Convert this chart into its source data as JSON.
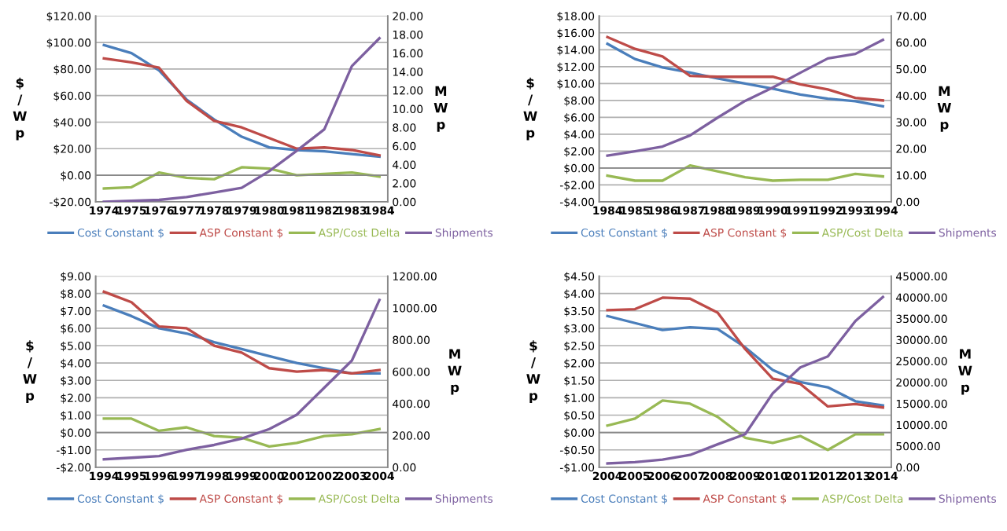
{
  "chart_data": [
    {
      "type": "line",
      "categories": [
        "1974",
        "1975",
        "1976",
        "1977",
        "1978",
        "1979",
        "1980",
        "1981",
        "1982",
        "1983",
        "1984"
      ],
      "ylabel": "$/Wp",
      "y2label": "MWp",
      "grid": "y",
      "legend": "bottom",
      "marker": "none",
      "line_style": "solid",
      "ylim": [
        -20,
        120
      ],
      "yticks": [
        {
          "value": -20,
          "label": "-$20.00"
        },
        {
          "value": 0,
          "label": "$0.00"
        },
        {
          "value": 20,
          "label": "$20.00"
        },
        {
          "value": 40,
          "label": "$40.00"
        },
        {
          "value": 60,
          "label": "$60.00"
        },
        {
          "value": 80,
          "label": "$80.00"
        },
        {
          "value": 100,
          "label": "$100.00"
        },
        {
          "value": 120,
          "label": "$120.00"
        }
      ],
      "y2lim": [
        0,
        20
      ],
      "y2ticks": [
        {
          "value": 0,
          "label": "0.00"
        },
        {
          "value": 2,
          "label": "2.00"
        },
        {
          "value": 4,
          "label": "4.00"
        },
        {
          "value": 6,
          "label": "6.00"
        },
        {
          "value": 8,
          "label": "8.00"
        },
        {
          "value": 10,
          "label": "10.00"
        },
        {
          "value": 12,
          "label": "12.00"
        },
        {
          "value": 14,
          "label": "14.00"
        },
        {
          "value": 16,
          "label": "16.00"
        },
        {
          "value": 18,
          "label": "18.00"
        },
        {
          "value": 20,
          "label": "20.00"
        }
      ],
      "series": [
        {
          "name": "Cost Constant $",
          "color": "#4a7ebb",
          "values": [
            98,
            92,
            79,
            57,
            42,
            29,
            21,
            19,
            18,
            16,
            14
          ]
        },
        {
          "name": "ASP Constant $",
          "color": "#be4b48",
          "values": [
            88,
            85,
            81,
            56,
            41,
            36,
            28,
            20,
            21,
            19,
            15
          ]
        },
        {
          "name": "ASP/Cost Delta",
          "color": "#98b954",
          "values": [
            -10,
            -9,
            2,
            -2,
            -3,
            6,
            5,
            0,
            1,
            2,
            -1
          ]
        },
        {
          "name": "Shipments",
          "color": "#7d60a0",
          "axis": "y2",
          "values": [
            0,
            0.1,
            0.2,
            0.5,
            1,
            1.5,
            3.3,
            5.5,
            7.8,
            14.6,
            17.6
          ]
        }
      ]
    },
    {
      "type": "line",
      "categories": [
        "1984",
        "1985",
        "1986",
        "1987",
        "1988",
        "1989",
        "1990",
        "1991",
        "1992",
        "1993",
        "1994"
      ],
      "ylabel": "$/Wp",
      "y2label": "MWp",
      "grid": "y",
      "legend": "bottom",
      "marker": "none",
      "line_style": "solid",
      "ylim": [
        -4,
        18
      ],
      "yticks": [
        {
          "value": -4,
          "label": "-$4.00"
        },
        {
          "value": -2,
          "label": "-$2.00"
        },
        {
          "value": 0,
          "label": "$0.00"
        },
        {
          "value": 2,
          "label": "$2.00"
        },
        {
          "value": 4,
          "label": "$4.00"
        },
        {
          "value": 6,
          "label": "$6.00"
        },
        {
          "value": 8,
          "label": "$8.00"
        },
        {
          "value": 10,
          "label": "$10.00"
        },
        {
          "value": 12,
          "label": "$12.00"
        },
        {
          "value": 14,
          "label": "$14.00"
        },
        {
          "value": 16,
          "label": "$16.00"
        },
        {
          "value": 18,
          "label": "$18.00"
        }
      ],
      "y2lim": [
        0,
        70
      ],
      "y2ticks": [
        {
          "value": 0,
          "label": "0.00"
        },
        {
          "value": 10,
          "label": "10.00"
        },
        {
          "value": 20,
          "label": "20.00"
        },
        {
          "value": 30,
          "label": "30.00"
        },
        {
          "value": 40,
          "label": "40.00"
        },
        {
          "value": 50,
          "label": "50.00"
        },
        {
          "value": 60,
          "label": "60.00"
        },
        {
          "value": 70,
          "label": "70.00"
        }
      ],
      "series": [
        {
          "name": "Cost Constant $",
          "color": "#4a7ebb",
          "values": [
            14.7,
            12.9,
            11.9,
            11.3,
            10.6,
            10.0,
            9.4,
            8.7,
            8.2,
            7.9,
            7.3
          ]
        },
        {
          "name": "ASP Constant $",
          "color": "#be4b48",
          "values": [
            15.5,
            14.1,
            13.2,
            10.9,
            10.8,
            10.8,
            10.8,
            9.9,
            9.3,
            8.3,
            8.0
          ]
        },
        {
          "name": "ASP/Cost Delta",
          "color": "#98b954",
          "values": [
            -0.9,
            -1.5,
            -1.5,
            0.3,
            -0.4,
            -1.1,
            -1.5,
            -1.4,
            -1.4,
            -0.7,
            -1.0
          ]
        },
        {
          "name": "Shipments",
          "color": "#7d60a0",
          "axis": "y2",
          "values": [
            17.4,
            19,
            20.8,
            25,
            31.7,
            38,
            43,
            48.6,
            54,
            55.7,
            61
          ]
        }
      ]
    },
    {
      "type": "line",
      "categories": [
        "1994",
        "1995",
        "1996",
        "1997",
        "1998",
        "1999",
        "2000",
        "2001",
        "2002",
        "2003",
        "2004"
      ],
      "ylabel": "$/Wp",
      "y2label": "MWp",
      "grid": "y",
      "legend": "bottom",
      "marker": "none",
      "line_style": "solid",
      "ylim": [
        -2,
        9
      ],
      "yticks": [
        {
          "value": -2,
          "label": "-$2.00"
        },
        {
          "value": -1,
          "label": "-$1.00"
        },
        {
          "value": 0,
          "label": "$0.00"
        },
        {
          "value": 1,
          "label": "$1.00"
        },
        {
          "value": 2,
          "label": "$2.00"
        },
        {
          "value": 3,
          "label": "$3.00"
        },
        {
          "value": 4,
          "label": "$4.00"
        },
        {
          "value": 5,
          "label": "$5.00"
        },
        {
          "value": 6,
          "label": "$6.00"
        },
        {
          "value": 7,
          "label": "$7.00"
        },
        {
          "value": 8,
          "label": "$8.00"
        },
        {
          "value": 9,
          "label": "$9.00"
        }
      ],
      "y2lim": [
        0,
        1200
      ],
      "y2ticks": [
        {
          "value": 0,
          "label": "0.00"
        },
        {
          "value": 200,
          "label": "200.00"
        },
        {
          "value": 400,
          "label": "400.00"
        },
        {
          "value": 600,
          "label": "600.00"
        },
        {
          "value": 800,
          "label": "800.00"
        },
        {
          "value": 1000,
          "label": "1000.00"
        },
        {
          "value": 1200,
          "label": "1200.00"
        }
      ],
      "series": [
        {
          "name": "Cost Constant $",
          "color": "#4a7ebb",
          "values": [
            7.3,
            6.7,
            6.0,
            5.7,
            5.2,
            4.8,
            4.4,
            4.0,
            3.7,
            3.4,
            3.4
          ]
        },
        {
          "name": "ASP Constant $",
          "color": "#be4b48",
          "values": [
            8.1,
            7.5,
            6.1,
            6.0,
            5.0,
            4.6,
            3.7,
            3.5,
            3.6,
            3.4,
            3.6
          ]
        },
        {
          "name": "ASP/Cost Delta",
          "color": "#98b954",
          "values": [
            0.8,
            0.8,
            0.1,
            0.3,
            -0.2,
            -0.3,
            -0.8,
            -0.6,
            -0.2,
            -0.1,
            0.2
          ]
        },
        {
          "name": "Shipments",
          "color": "#7d60a0",
          "axis": "y2",
          "values": [
            50,
            60,
            70,
            110,
            140,
            180,
            240,
            330,
            500,
            670,
            1050
          ]
        }
      ]
    },
    {
      "type": "line",
      "categories": [
        "2004",
        "2005",
        "2006",
        "2007",
        "2008",
        "2009",
        "2010",
        "2011",
        "2012",
        "2013",
        "2014"
      ],
      "ylabel": "$/Wp",
      "y2label": "MWp",
      "grid": "y",
      "legend": "bottom",
      "marker": "none",
      "line_style": "solid",
      "ylim": [
        -1,
        4.5
      ],
      "yticks": [
        {
          "value": -1,
          "label": "-$1.00"
        },
        {
          "value": -0.5,
          "label": "-$0.50"
        },
        {
          "value": 0,
          "label": "$0.00"
        },
        {
          "value": 0.5,
          "label": "$0.50"
        },
        {
          "value": 1,
          "label": "$1.00"
        },
        {
          "value": 1.5,
          "label": "$1.50"
        },
        {
          "value": 2,
          "label": "$2.00"
        },
        {
          "value": 2.5,
          "label": "$2.50"
        },
        {
          "value": 3,
          "label": "$3.00"
        },
        {
          "value": 3.5,
          "label": "$3.50"
        },
        {
          "value": 4,
          "label": "$4.00"
        },
        {
          "value": 4.5,
          "label": "$4.50"
        }
      ],
      "y2lim": [
        0,
        45000
      ],
      "y2ticks": [
        {
          "value": 0,
          "label": "0.00"
        },
        {
          "value": 5000,
          "label": "5000.00"
        },
        {
          "value": 10000,
          "label": "10000.00"
        },
        {
          "value": 15000,
          "label": "15000.00"
        },
        {
          "value": 20000,
          "label": "20000.00"
        },
        {
          "value": 25000,
          "label": "25000.00"
        },
        {
          "value": 30000,
          "label": "30000.00"
        },
        {
          "value": 35000,
          "label": "35000.00"
        },
        {
          "value": 40000,
          "label": "40000.00"
        },
        {
          "value": 45000,
          "label": "45000.00"
        }
      ],
      "series": [
        {
          "name": "Cost Constant $",
          "color": "#4a7ebb",
          "values": [
            3.35,
            3.15,
            2.95,
            3.03,
            2.98,
            2.45,
            1.8,
            1.45,
            1.3,
            0.9,
            0.78
          ]
        },
        {
          "name": "ASP Constant $",
          "color": "#be4b48",
          "values": [
            3.52,
            3.55,
            3.88,
            3.85,
            3.45,
            2.4,
            1.55,
            1.4,
            0.75,
            0.82,
            0.72
          ]
        },
        {
          "name": "ASP/Cost Delta",
          "color": "#98b954",
          "values": [
            0.2,
            0.4,
            0.92,
            0.83,
            0.45,
            -0.15,
            -0.3,
            -0.1,
            -0.5,
            -0.05,
            -0.05
          ]
        },
        {
          "name": "Shipments",
          "color": "#7d60a0",
          "axis": "y2",
          "values": [
            900,
            1200,
            1800,
            2900,
            5400,
            7800,
            17400,
            23500,
            26100,
            34400,
            40100
          ]
        }
      ]
    }
  ]
}
